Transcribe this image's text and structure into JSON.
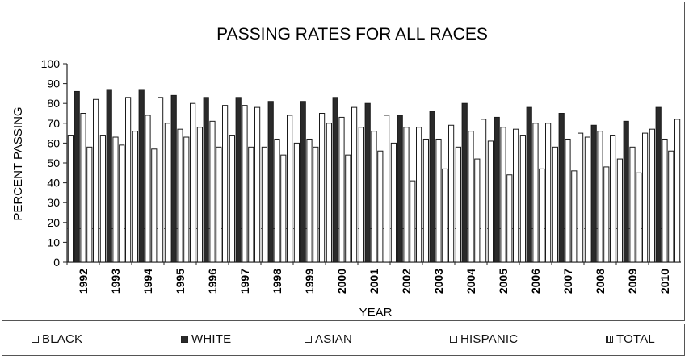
{
  "chart_data": {
    "type": "bar",
    "title": "PASSING RATES FOR ALL RACES",
    "xlabel": "YEAR",
    "ylabel": "PERCENT PASSING",
    "ylim": [
      0,
      100
    ],
    "yticks": [
      "0",
      "10",
      "20",
      "30",
      "40",
      "50",
      "60",
      "70",
      "80",
      "90",
      "100"
    ],
    "categories": [
      "1992",
      "1993",
      "1994",
      "1995",
      "1996",
      "1997",
      "1998",
      "1999",
      "2000",
      "2001",
      "2002",
      "2003",
      "2004",
      "2005",
      "2006",
      "2007",
      "2008",
      "2009",
      "2010"
    ],
    "series": [
      {
        "name": "BLACK",
        "values": [
          64,
          64,
          66,
          70,
          68,
          64,
          58,
          60,
          70,
          68,
          60,
          62,
          58,
          61,
          64,
          58,
          63,
          52,
          67
        ]
      },
      {
        "name": "WHITE",
        "values": [
          86,
          87,
          87,
          84,
          83,
          83,
          81,
          81,
          83,
          80,
          74,
          76,
          80,
          73,
          78,
          75,
          69,
          71,
          78
        ]
      },
      {
        "name": "ASIAN",
        "values": [
          75,
          63,
          74,
          67,
          71,
          79,
          62,
          62,
          73,
          66,
          68,
          62,
          66,
          68,
          70,
          62,
          66,
          58,
          62
        ]
      },
      {
        "name": "HISPANIC",
        "values": [
          58,
          59,
          57,
          63,
          58,
          58,
          54,
          58,
          54,
          56,
          41,
          47,
          52,
          44,
          47,
          46,
          48,
          45,
          56
        ]
      },
      {
        "name": "TOTAL",
        "values": [
          82,
          83,
          83,
          80,
          79,
          78,
          74,
          75,
          78,
          74,
          68,
          69,
          72,
          67,
          70,
          65,
          64,
          65,
          72
        ]
      }
    ],
    "reference_line": 17,
    "grid": false,
    "legend_position": "bottom",
    "colors": {
      "light": "#ffffff",
      "dark": "#2a2a2a",
      "outline": "#1a1a1a"
    }
  }
}
